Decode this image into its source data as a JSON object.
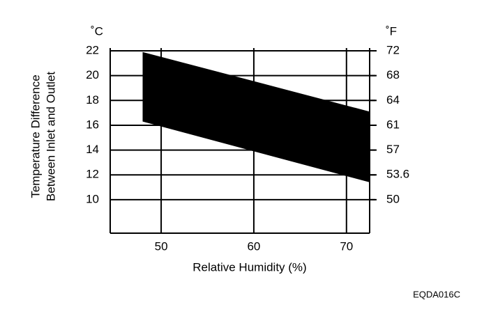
{
  "chart_data": {
    "type": "area_band",
    "y_label_lines": [
      "Temperature Difference",
      "Between Inlet and Outlet"
    ],
    "x_label": "Relative Humidity (%)",
    "y_unit": "˚C",
    "y2_unit": "˚F",
    "figure_code": "EQDA016C",
    "x": [
      48,
      72.5
    ],
    "upper": [
      21.9,
      17.1
    ],
    "lower": [
      16.3,
      11.4
    ],
    "color": "#000000",
    "xlim": [
      44.5,
      72.5
    ],
    "xticks": [
      50,
      60,
      70
    ],
    "ylim": [
      7.3,
      22
    ],
    "yticks": [
      10,
      12,
      14,
      16,
      18,
      20,
      22
    ],
    "y2lim": [
      45.14,
      71.6
    ],
    "y2ticks": [
      {
        "value": 50,
        "label": "50"
      },
      {
        "value": 53.6,
        "label": "53.6"
      },
      {
        "value": 57.2,
        "label": "57"
      },
      {
        "value": 60.8,
        "label": "61"
      },
      {
        "value": 64.4,
        "label": "64"
      },
      {
        "value": 68,
        "label": "68"
      },
      {
        "value": 71.6,
        "label": "72"
      }
    ],
    "grid": true
  }
}
